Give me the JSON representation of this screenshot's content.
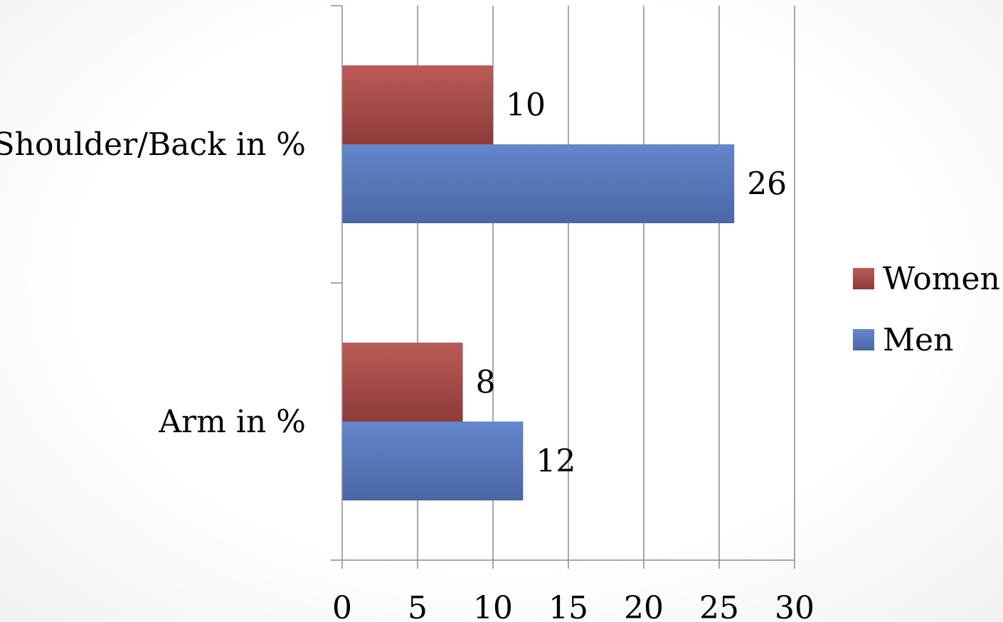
{
  "chart_data": {
    "type": "bar",
    "orientation": "horizontal",
    "categories": [
      "Arm in %",
      "Shoulder/Back in %"
    ],
    "series": [
      {
        "name": "Women",
        "values": [
          8,
          10
        ],
        "color": "#a94a47"
      },
      {
        "name": "Men",
        "values": [
          12,
          26
        ],
        "color": "#5676bc"
      }
    ],
    "xlim": [
      0,
      30
    ],
    "x_ticks": [
      0,
      5,
      10,
      15,
      20,
      25,
      30
    ],
    "grid": "vertical",
    "legend_position": "right",
    "data_labels": true,
    "title": "",
    "xlabel": "",
    "ylabel": ""
  }
}
